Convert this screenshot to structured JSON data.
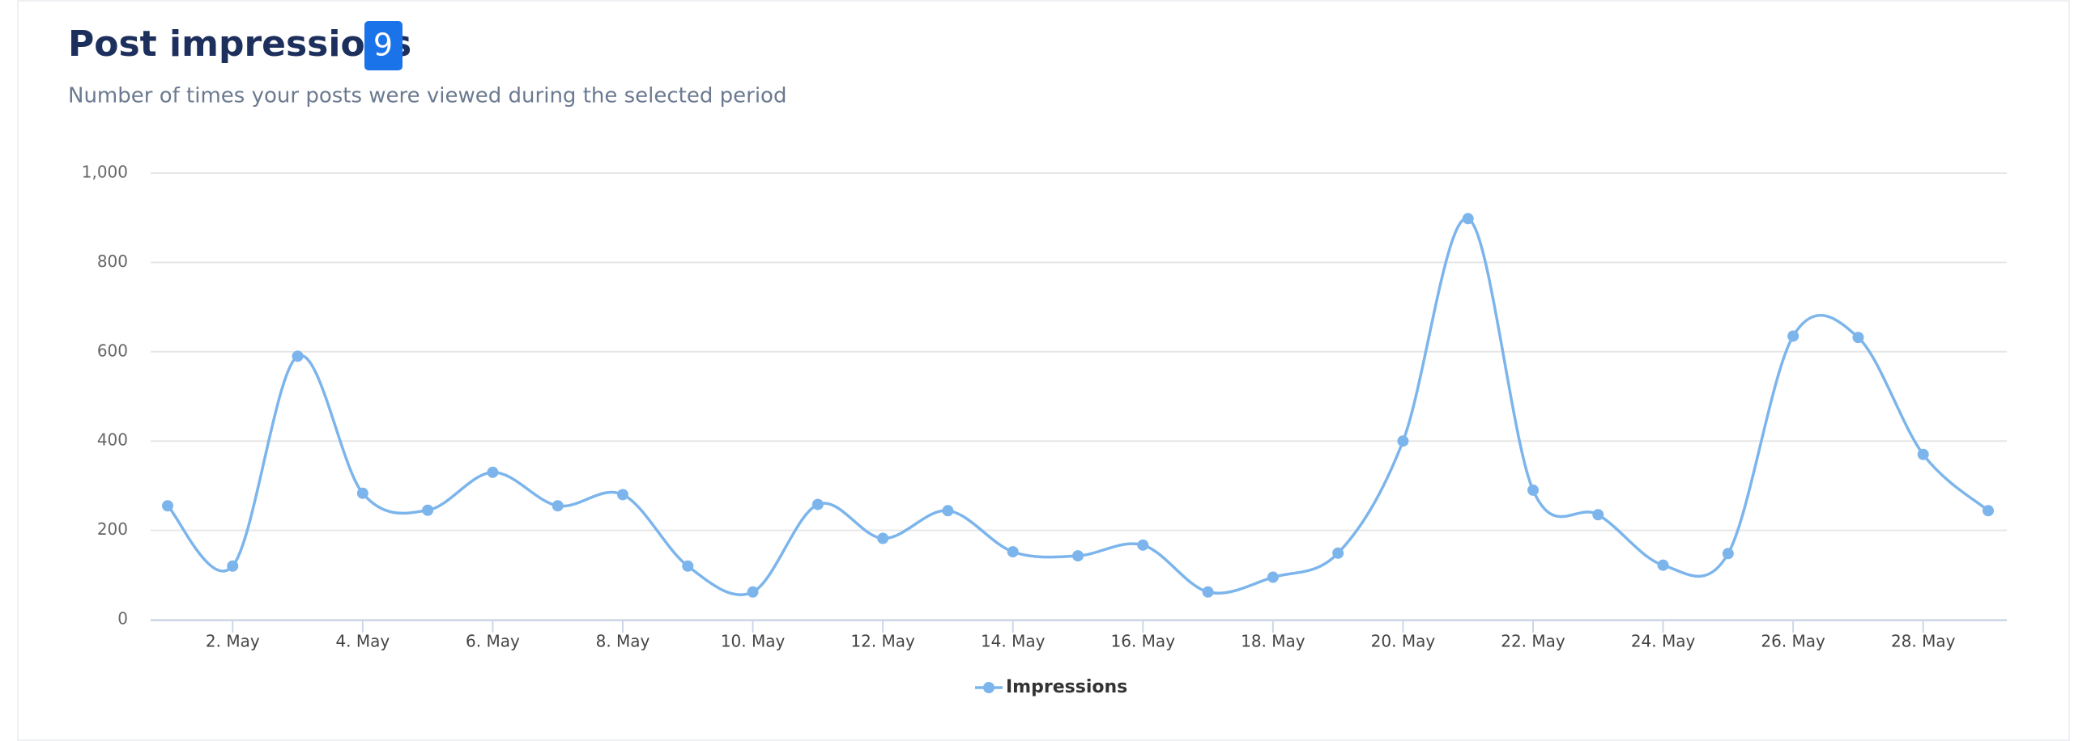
{
  "chart_data": {
    "type": "line",
    "title": "Post impressions",
    "badge": "9",
    "subtitle": "Number of times your posts were viewed during the selected period",
    "categories": [
      null,
      "2. May",
      null,
      "4. May",
      null,
      "6. May",
      null,
      "8. May",
      null,
      "10. May",
      null,
      "12. May",
      null,
      "14. May",
      null,
      "16. May",
      null,
      "18. May",
      null,
      "20. May",
      null,
      "22. May",
      null,
      "24. May",
      null,
      "26. May",
      null,
      "28. May",
      null
    ],
    "series": [
      {
        "name": "Impressions",
        "color": "#7cb5ec",
        "values": [
          255,
          120,
          590,
          283,
          245,
          330,
          255,
          280,
          120,
          62,
          258,
          182,
          244,
          152,
          143,
          167,
          62,
          95,
          149,
          400,
          898,
          290,
          235,
          122,
          148,
          635,
          632,
          370,
          244
        ]
      }
    ],
    "ylim": [
      0,
      1000
    ],
    "yticks": [
      0,
      200,
      400,
      600,
      800,
      {
        "value": 1000,
        "label": "1,000"
      }
    ],
    "grid": true,
    "legend": "bottom"
  }
}
